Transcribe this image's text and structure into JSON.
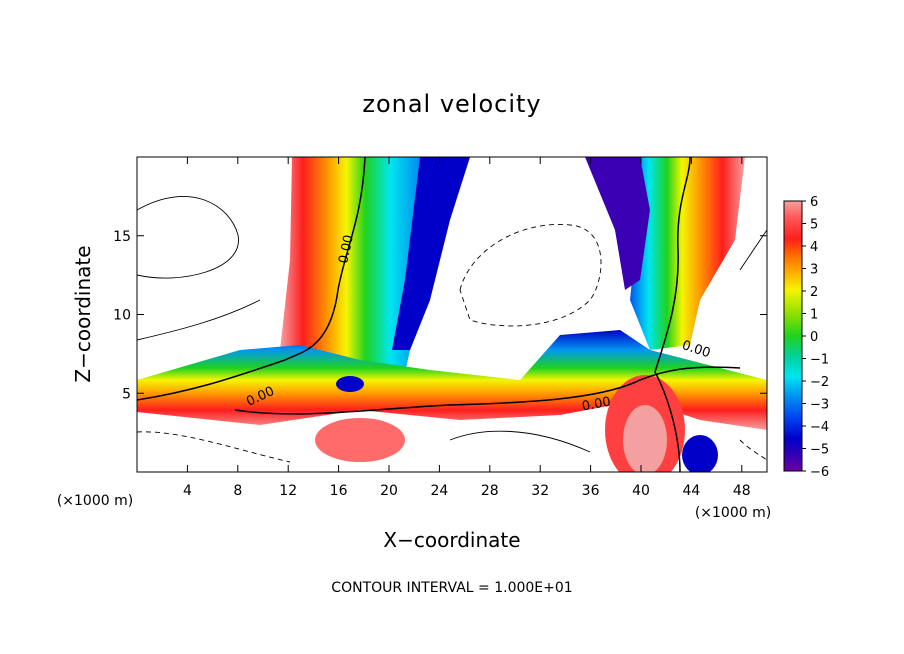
{
  "chart_data": {
    "type": "heatmap",
    "title": "zonal velocity",
    "xlabel": "X−coordinate",
    "ylabel": "Z−coordinate",
    "x_unit": "(×1000 m)",
    "z_unit": "(×1000 m)",
    "xlim": [
      0,
      50
    ],
    "ylim": [
      0,
      20
    ],
    "x_ticks": [
      4,
      8,
      12,
      16,
      20,
      24,
      28,
      32,
      36,
      40,
      44,
      48
    ],
    "y_ticks": [
      5,
      10,
      15
    ],
    "colorbar": {
      "min": -6,
      "max": 6,
      "ticks": [
        "6",
        "5",
        "4",
        "3",
        "2",
        "1",
        "0",
        "−1",
        "−2",
        "−3",
        "−4",
        "−5",
        "−6"
      ]
    },
    "contour_labels": [
      "0.00",
      "0.00",
      "0.00",
      "0.00"
    ],
    "footer": "CONTOUR INTERVAL = 1.000E+01"
  }
}
